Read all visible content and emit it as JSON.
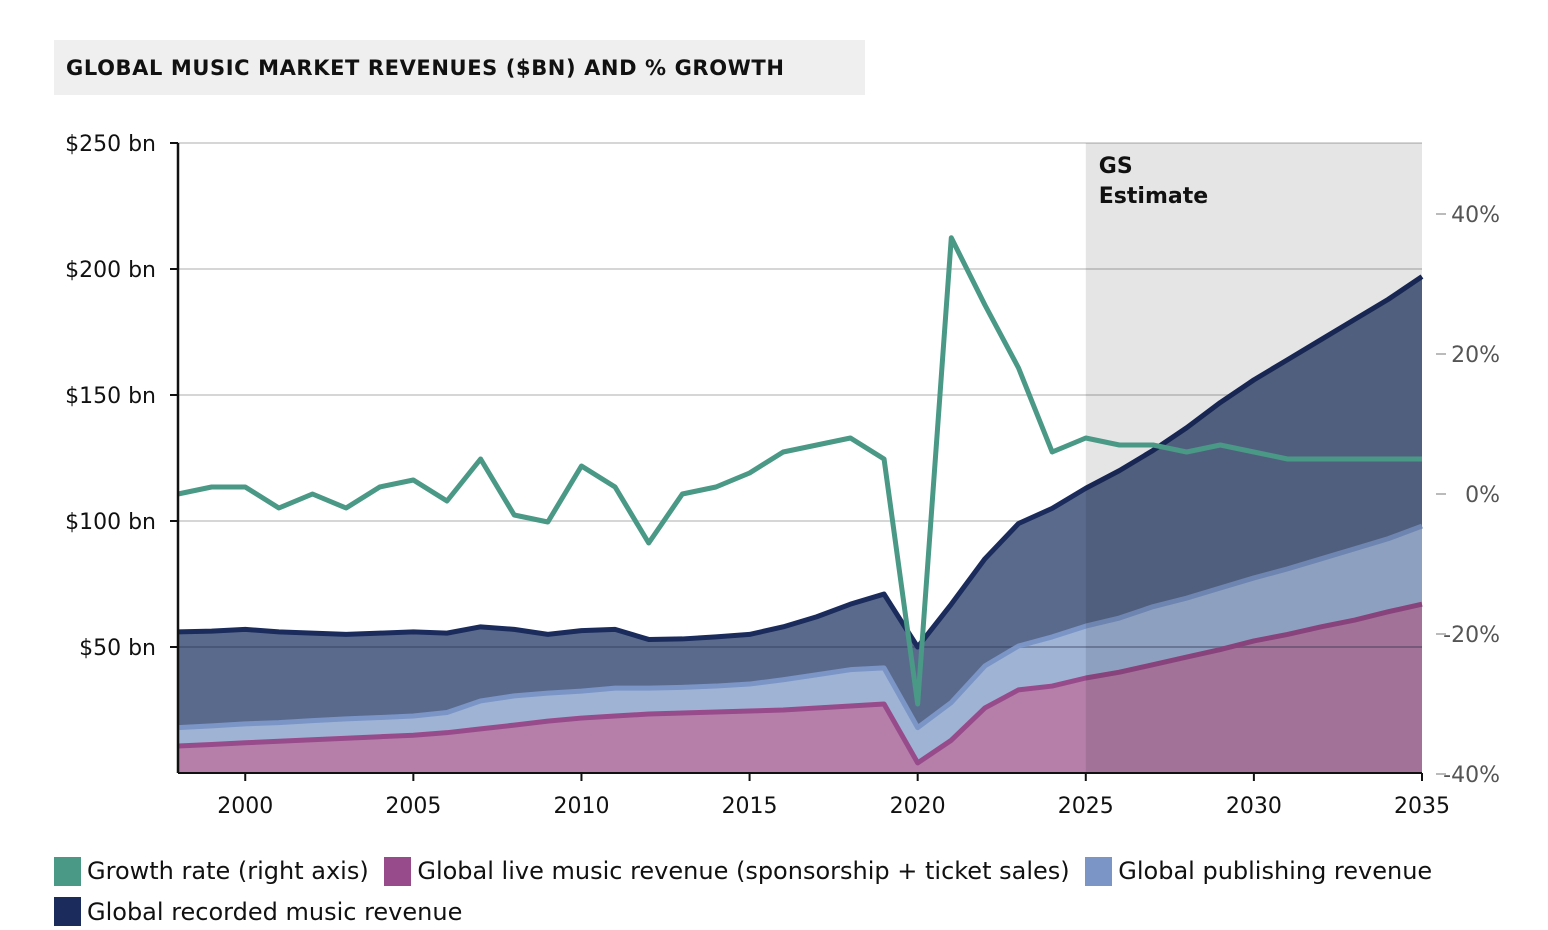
{
  "chart_data": {
    "type": "area",
    "title": "GLOBAL MUSIC MARKET REVENUES ($BN) AND % GROWTH",
    "annotation": "GS Estimate",
    "annotation_lines": [
      "GS",
      "Estimate"
    ],
    "estimate_start": 2025,
    "x": [
      1998,
      1999,
      2000,
      2001,
      2002,
      2003,
      2004,
      2005,
      2006,
      2007,
      2008,
      2009,
      2010,
      2011,
      2012,
      2013,
      2014,
      2015,
      2016,
      2017,
      2018,
      2019,
      2020,
      2021,
      2022,
      2023,
      2024,
      2025,
      2026,
      2027,
      2028,
      2029,
      2030,
      2031,
      2032,
      2033,
      2034,
      2035
    ],
    "xlim": [
      1998,
      2035
    ],
    "x_ticks": [
      "2000",
      "2005",
      "2010",
      "2015",
      "2020",
      "2025",
      "2030",
      "2035"
    ],
    "left_axis": {
      "ylim": [
        0,
        250
      ],
      "ticks": [
        {
          "v": 50,
          "label": "$50 bn"
        },
        {
          "v": 100,
          "label": "$100 bn"
        },
        {
          "v": 150,
          "label": "$150 bn"
        },
        {
          "v": 200,
          "label": "$200 bn"
        },
        {
          "v": 250,
          "label": "$250 bn"
        }
      ]
    },
    "right_axis": {
      "ylim": [
        -40,
        50
      ],
      "ticks": [
        {
          "v": -40,
          "label": "-40%"
        },
        {
          "v": -20,
          "label": "-20%"
        },
        {
          "v": 0,
          "label": "0%"
        },
        {
          "v": 20,
          "label": "20%"
        },
        {
          "v": 40,
          "label": "40%"
        }
      ]
    },
    "grid": true,
    "legend_position": "bottom",
    "series": [
      {
        "name": "Global live music revenue (sponsorship + ticket sales)",
        "kind": "stacked-cumulative",
        "fill": "#b67faa",
        "line": "#984b8b",
        "values": [
          10.7,
          11.3,
          12,
          12.6,
          13.2,
          13.8,
          14.4,
          15,
          16,
          17.5,
          19,
          20.6,
          21.8,
          22.6,
          23.4,
          23.8,
          24.2,
          24.6,
          25,
          25.8,
          26.6,
          27.4,
          4,
          13,
          25.8,
          33,
          34.5,
          37.7,
          40,
          43,
          46,
          49,
          52.4,
          55,
          58,
          60.7,
          64,
          67
        ]
      },
      {
        "name": "Global publishing revenue",
        "kind": "stacked-cumulative",
        "fill": "#9fb3d5",
        "line": "#7b95c6",
        "values": [
          18,
          18.7,
          19.5,
          20,
          20.8,
          21.5,
          22,
          22.6,
          24,
          28.6,
          30.6,
          31.7,
          32.5,
          33.7,
          33.7,
          34,
          34.5,
          35.3,
          37,
          39,
          41,
          41.7,
          18,
          28,
          42.5,
          50.4,
          54,
          58.3,
          61.5,
          66,
          69.4,
          73.4,
          77.4,
          81,
          85,
          89,
          93,
          98
        ]
      },
      {
        "name": "Global recorded music revenue",
        "kind": "stacked-cumulative",
        "fill": "#5a6a8d",
        "line": "#1a2b5c",
        "values": [
          56,
          56.3,
          57,
          56,
          55.5,
          55,
          55.5,
          56,
          55.5,
          58,
          57,
          55,
          56.5,
          57,
          53,
          53.2,
          54,
          55,
          58,
          62,
          67,
          71,
          50,
          67,
          85,
          99,
          105,
          113,
          120,
          128,
          137,
          147,
          156,
          164,
          172,
          180,
          188,
          197
        ]
      },
      {
        "name": "Growth rate (right axis)",
        "kind": "line-right",
        "line": "#4a9886",
        "values": [
          0,
          1,
          1,
          -2,
          0,
          -2,
          1,
          2,
          -1,
          5,
          -3,
          -4,
          4,
          1,
          -7,
          0,
          1,
          3,
          6,
          7,
          8,
          5,
          -30,
          36.6,
          27,
          18,
          6,
          8,
          7,
          7,
          6,
          7,
          6,
          5,
          5,
          5,
          5,
          5
        ]
      }
    ]
  },
  "legend": [
    {
      "label": "Growth rate (right axis)",
      "color": "#4a9886"
    },
    {
      "label": "Global live music revenue (sponsorship + ticket sales)",
      "color": "#984b8b"
    },
    {
      "label": "Global publishing revenue",
      "color": "#7b95c6"
    },
    {
      "label": "Global recorded music revenue",
      "color": "#1a2b5c"
    }
  ]
}
